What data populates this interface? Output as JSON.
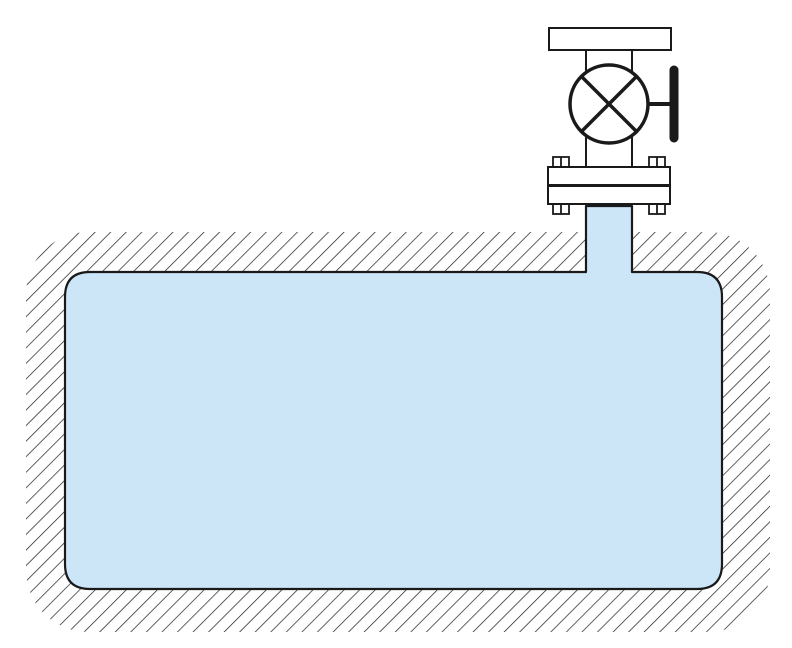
{
  "colors": {
    "background": "#ffffff",
    "liquid": "#cce6f8",
    "outline": "#1a1a1a",
    "hatch": "#1a1a1a",
    "valve_body": "#ffffff",
    "handle": "#1a1a1a"
  },
  "icons": {
    "valve": "valve-icon",
    "handwheel": "handwheel-icon",
    "flange_bolt": "bolt-icon"
  }
}
